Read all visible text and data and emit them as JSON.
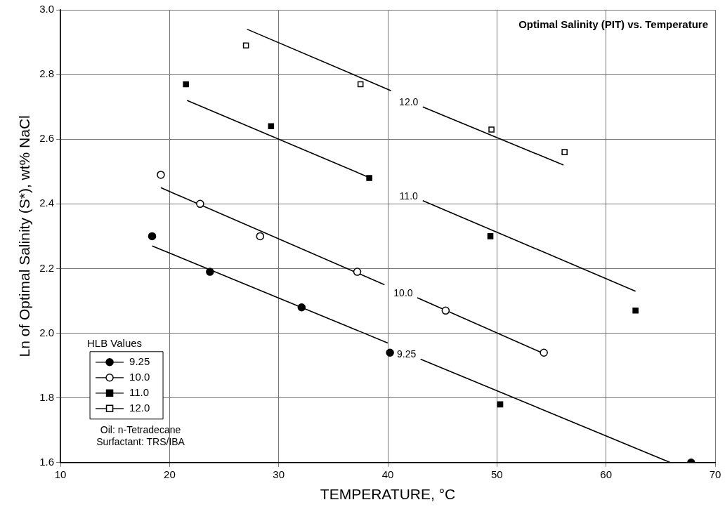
{
  "chart_data": {
    "type": "scatter",
    "title": "Optimal Salinity (PIT) vs. Temperature",
    "xlabel": "TEMPERATURE, °C",
    "ylabel": "Ln of Optimal Salinity (S*), wt% NaCl",
    "legend_title": "HLB Values",
    "legend": "bottom left",
    "grid": true,
    "xlim": [
      10,
      70
    ],
    "xticks": [
      10,
      20,
      30,
      40,
      50,
      60,
      70
    ],
    "ylim": [
      1.6,
      3.0
    ],
    "yticks": [
      1.6,
      1.8,
      {
        "value": 2,
        "label": "2.0"
      },
      2.2,
      2.4,
      2.6,
      2.8,
      {
        "value": 3,
        "label": "3.0"
      }
    ],
    "series": [
      {
        "name": "9.25",
        "marker": "circle",
        "color": "#000000",
        "x": [
          18.4,
          23.7,
          32.1,
          40.2,
          67.8
        ],
        "values": [
          2.3,
          2.19,
          2.08,
          1.94,
          1.6
        ]
      },
      {
        "name": "10.0",
        "marker": "circle",
        "color": "#ffffff",
        "x": [
          19.2,
          22.8,
          28.3,
          37.2,
          45.3,
          54.3
        ],
        "values": [
          2.49,
          2.4,
          2.3,
          2.19,
          2.07,
          1.94
        ]
      },
      {
        "name": "11.0",
        "marker": "square",
        "color": "#000000",
        "x": [
          21.5,
          29.3,
          38.3,
          49.4,
          50.3,
          62.7
        ],
        "values": [
          2.77,
          2.64,
          2.48,
          2.3,
          1.78,
          2.07
        ]
      },
      {
        "name": "12.0",
        "marker": "square",
        "color": "#ffffff",
        "x": [
          27.0,
          37.5,
          49.5,
          56.2
        ],
        "values": [
          2.89,
          2.77,
          2.63,
          2.56
        ]
      },
      {
        "name": "9.25",
        "type": "line",
        "marker": "none",
        "color": "#000000",
        "x": [
          18.4,
          40.0,
          41.5,
          43.0,
          65.9
        ],
        "values": [
          2.27,
          1.97,
          null,
          1.92,
          1.6
        ]
      },
      {
        "name": "10.0",
        "type": "line",
        "marker": "none",
        "color": "#000000",
        "x": [
          19.2,
          39.7,
          41.2,
          42.7,
          54.1
        ],
        "values": [
          2.45,
          2.15,
          null,
          2.11,
          1.94
        ]
      },
      {
        "name": "11.0",
        "type": "line",
        "marker": "none",
        "color": "#000000",
        "x": [
          21.6,
          38.4,
          40.8,
          43.2,
          62.7
        ],
        "values": [
          2.72,
          2.48,
          null,
          2.41,
          2.13
        ]
      },
      {
        "name": "12.0",
        "type": "line",
        "marker": "none",
        "color": "#000000",
        "x": [
          27.1,
          40.3,
          41.7,
          43.2,
          56.1
        ],
        "values": [
          2.94,
          2.75,
          null,
          2.7,
          2.52
        ]
      }
    ],
    "annotations": [
      "Oil: n-Tetradecane",
      "Surfactant: TRS/IBA"
    ]
  }
}
